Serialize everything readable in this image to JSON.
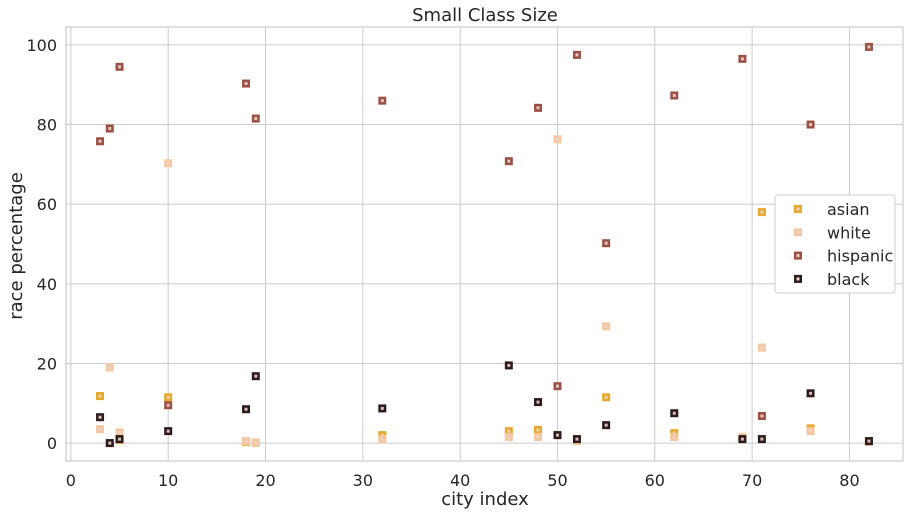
{
  "chart_data": {
    "type": "scatter",
    "title": "Small Class Size",
    "xlabel": "city index",
    "ylabel": "race percentage",
    "xlim": [
      -0.5,
      85.5
    ],
    "ylim": [
      -4.5,
      104.5
    ],
    "xticks": [
      0,
      10,
      20,
      30,
      40,
      50,
      60,
      70,
      80
    ],
    "yticks": [
      0,
      20,
      40,
      60,
      80,
      100
    ],
    "grid": true,
    "legend_position": "center-right",
    "series": [
      {
        "name": "asian",
        "color": "#e8a829",
        "points": [
          [
            3,
            11.8
          ],
          [
            4,
            0
          ],
          [
            5,
            0.8
          ],
          [
            10,
            11.5
          ],
          [
            18,
            0.3
          ],
          [
            19,
            0.1
          ],
          [
            32,
            2
          ],
          [
            45,
            3
          ],
          [
            48,
            3.3
          ],
          [
            50,
            2
          ],
          [
            52,
            0.5
          ],
          [
            55,
            11.5
          ],
          [
            62,
            2.5
          ],
          [
            69,
            1
          ],
          [
            71,
            58
          ],
          [
            76,
            3.7
          ],
          [
            82,
            0.5
          ]
        ]
      },
      {
        "name": "white",
        "color": "#f5c7a1",
        "points": [
          [
            3,
            3.5
          ],
          [
            4,
            19
          ],
          [
            5,
            2.7
          ],
          [
            10,
            70.3
          ],
          [
            18,
            0.5
          ],
          [
            19,
            0.1
          ],
          [
            32,
            1
          ],
          [
            45,
            1.5
          ],
          [
            48,
            1.5
          ],
          [
            50,
            76.3
          ],
          [
            52,
            0.5
          ],
          [
            55,
            29.3
          ],
          [
            62,
            1.5
          ],
          [
            69,
            1.5
          ],
          [
            71,
            24
          ],
          [
            76,
            3
          ],
          [
            82,
            0.3
          ]
        ]
      },
      {
        "name": "hispanic",
        "color": "#9c4f43",
        "points": [
          [
            3,
            75.8
          ],
          [
            4,
            79
          ],
          [
            5,
            94.5
          ],
          [
            10,
            9.5
          ],
          [
            18,
            90.3
          ],
          [
            19,
            81.5
          ],
          [
            32,
            86
          ],
          [
            45,
            70.8
          ],
          [
            48,
            84.2
          ],
          [
            50,
            14.3
          ],
          [
            52,
            97.5
          ],
          [
            55,
            50.2
          ],
          [
            62,
            87.3
          ],
          [
            69,
            96.5
          ],
          [
            71,
            6.8
          ],
          [
            76,
            80
          ],
          [
            82,
            99.5
          ]
        ]
      },
      {
        "name": "black",
        "color": "#2e1a1a",
        "points": [
          [
            3,
            6.5
          ],
          [
            4,
            0
          ],
          [
            5,
            1
          ],
          [
            10,
            3
          ],
          [
            18,
            8.5
          ],
          [
            19,
            16.8
          ],
          [
            32,
            8.7
          ],
          [
            45,
            19.5
          ],
          [
            48,
            10.3
          ],
          [
            50,
            2
          ],
          [
            52,
            1
          ],
          [
            55,
            4.5
          ],
          [
            62,
            7.5
          ],
          [
            69,
            1
          ],
          [
            71,
            1
          ],
          [
            76,
            12.5
          ],
          [
            82,
            0.5
          ]
        ]
      }
    ]
  }
}
